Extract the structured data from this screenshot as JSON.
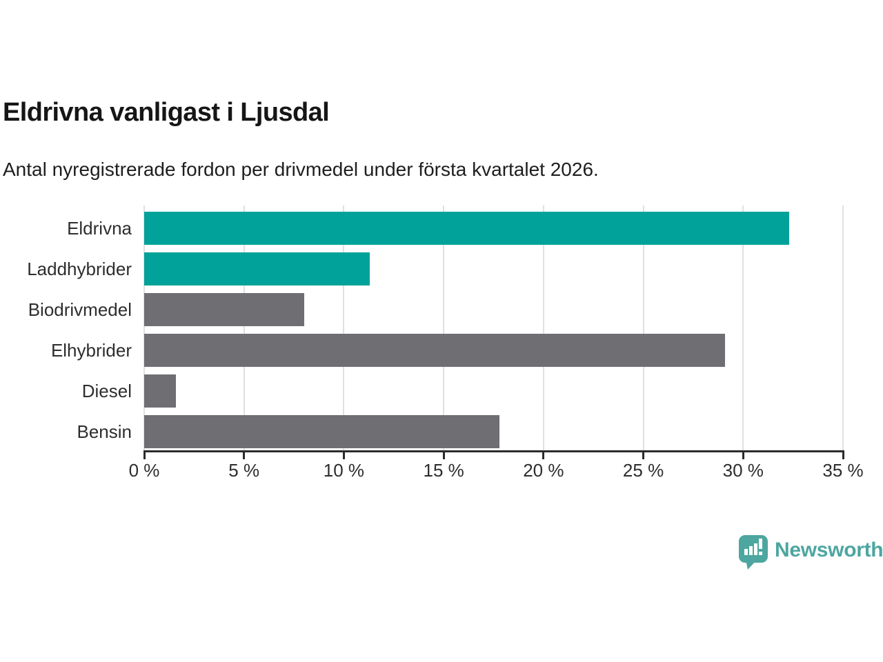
{
  "chart_data": {
    "type": "bar",
    "orientation": "horizontal",
    "title": "Eldrivna vanligast i Ljusdal",
    "subtitle": "Antal nyregistrerade fordon per drivmedel under första kvartalet 2026.",
    "categories": [
      "Eldrivna",
      "Laddhybrider",
      "Biodrivmedel",
      "Elhybrider",
      "Diesel",
      "Bensin"
    ],
    "values": [
      32.3,
      11.3,
      8.0,
      29.1,
      1.6,
      17.8
    ],
    "unit": "%",
    "bar_colors": [
      "#00a29a",
      "#00a29a",
      "#6e6e73",
      "#6e6e73",
      "#6e6e73",
      "#6e6e73"
    ],
    "highlight_color": "#00a29a",
    "default_color": "#6e6e73",
    "xlim": [
      0,
      35
    ],
    "x_ticks": [
      0,
      5,
      10,
      15,
      20,
      25,
      30,
      35
    ],
    "x_tick_suffix": " %",
    "xlabel": "",
    "ylabel": "",
    "grid": "vertical",
    "gridline_color": "#e0e0e0",
    "axis_color": "#2b2b2b",
    "legend": "none"
  },
  "footer": {
    "brand": "Newsworthy",
    "brand_color": "#4da6a0"
  }
}
